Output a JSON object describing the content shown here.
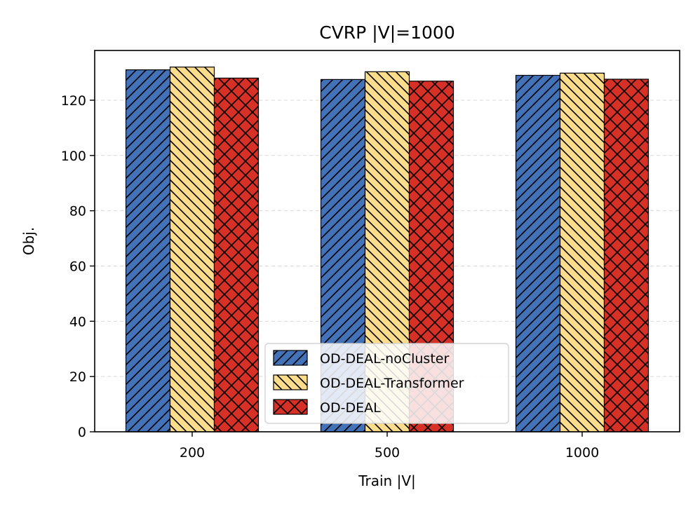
{
  "chart_data": {
    "type": "bar",
    "title": "CVRP |V|=1000",
    "xlabel": "Train |V|",
    "ylabel": "Obj.",
    "categories": [
      "200",
      "500",
      "1000"
    ],
    "ylim": [
      0,
      138
    ],
    "yticks": [
      0,
      20,
      40,
      60,
      80,
      100,
      120
    ],
    "grid": true,
    "legend_position": "lower-center",
    "series": [
      {
        "name": "OD-DEAL-noCluster",
        "values": [
          131.0,
          127.5,
          129.0
        ],
        "color": "#4472b8",
        "hatch": "forward"
      },
      {
        "name": "OD-DEAL-Transformer",
        "values": [
          132.0,
          130.3,
          129.8
        ],
        "color": "#fddc8c",
        "hatch": "backward"
      },
      {
        "name": "OD-DEAL",
        "values": [
          128.0,
          126.9,
          127.6
        ],
        "color": "#d73027",
        "hatch": "cross"
      }
    ]
  }
}
